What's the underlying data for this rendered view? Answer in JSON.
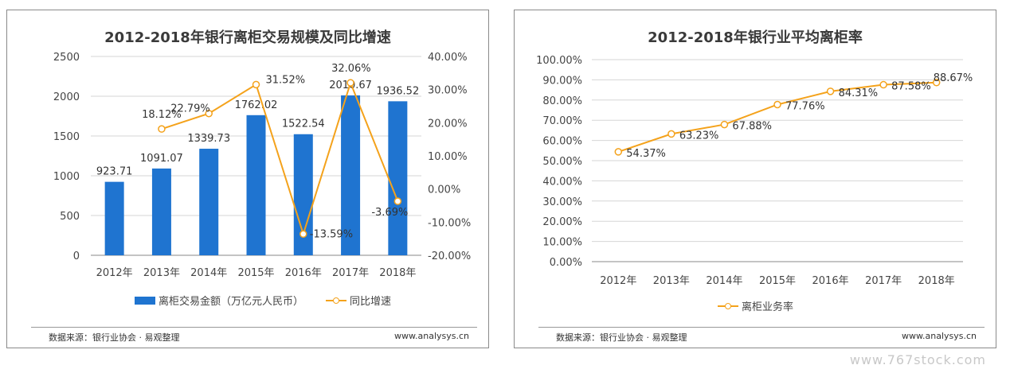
{
  "charts": [
    {
      "title": "2012-2018年银行离柜交易规模及同比增速",
      "source": "数据来源：银行业协会 · 易观整理",
      "site": "www.analysys.cn"
    },
    {
      "title": "2012-2018年银行业平均离柜率",
      "source": "数据来源：银行业协会 · 易观整理",
      "site": "www.analysys.cn"
    }
  ],
  "watermark": "www.767stock.com",
  "chart_data": [
    {
      "type": "bar",
      "categories": [
        "2012年",
        "2013年",
        "2014年",
        "2015年",
        "2016年",
        "2017年",
        "2018年"
      ],
      "series": [
        {
          "name": "离柜交易金额（万亿元人民币）",
          "type": "bar",
          "axis": "left",
          "values": [
            923.71,
            1091.07,
            1339.73,
            1762.02,
            1522.54,
            2010.67,
            1936.52
          ],
          "labels": [
            "923.71",
            "1091.07",
            "1339.73",
            "1762.02",
            "1522.54",
            "2010.67",
            "1936.52"
          ],
          "color": "#1f74d0"
        },
        {
          "name": "同比增速",
          "type": "line",
          "axis": "right",
          "values": [
            null,
            18.12,
            22.79,
            31.52,
            -13.59,
            32.06,
            -3.69
          ],
          "labels": [
            "",
            "18.12%",
            "22.79%",
            "31.52%",
            "-13.59%",
            "32.06%",
            "-3.69%"
          ],
          "color": "#f4a21b"
        }
      ],
      "y_left": {
        "min": 0,
        "max": 2500,
        "ticks": [
          "0",
          "500",
          "1000",
          "1500",
          "2000",
          "2500"
        ]
      },
      "y_right": {
        "min": -20,
        "max": 40,
        "ticks": [
          "-20.00%",
          "-10.00%",
          "0.00%",
          "10.00%",
          "20.00%",
          "30.00%",
          "40.00%"
        ]
      },
      "legend_position": "bottom",
      "grid": true
    },
    {
      "type": "line",
      "categories": [
        "2012年",
        "2013年",
        "2014年",
        "2015年",
        "2016年",
        "2017年",
        "2018年"
      ],
      "series": [
        {
          "name": "离柜业务率",
          "values": [
            54.37,
            63.23,
            67.88,
            77.76,
            84.31,
            87.58,
            88.67
          ],
          "labels": [
            "54.37%",
            "63.23%",
            "67.88%",
            "77.76%",
            "84.31%",
            "87.58%",
            "88.67%"
          ],
          "color": "#f4a21b"
        }
      ],
      "y": {
        "min": 0,
        "max": 100,
        "ticks": [
          "0.00%",
          "10.00%",
          "20.00%",
          "30.00%",
          "40.00%",
          "50.00%",
          "60.00%",
          "70.00%",
          "80.00%",
          "90.00%",
          "100.00%"
        ]
      },
      "legend_position": "bottom",
      "grid": true
    }
  ]
}
